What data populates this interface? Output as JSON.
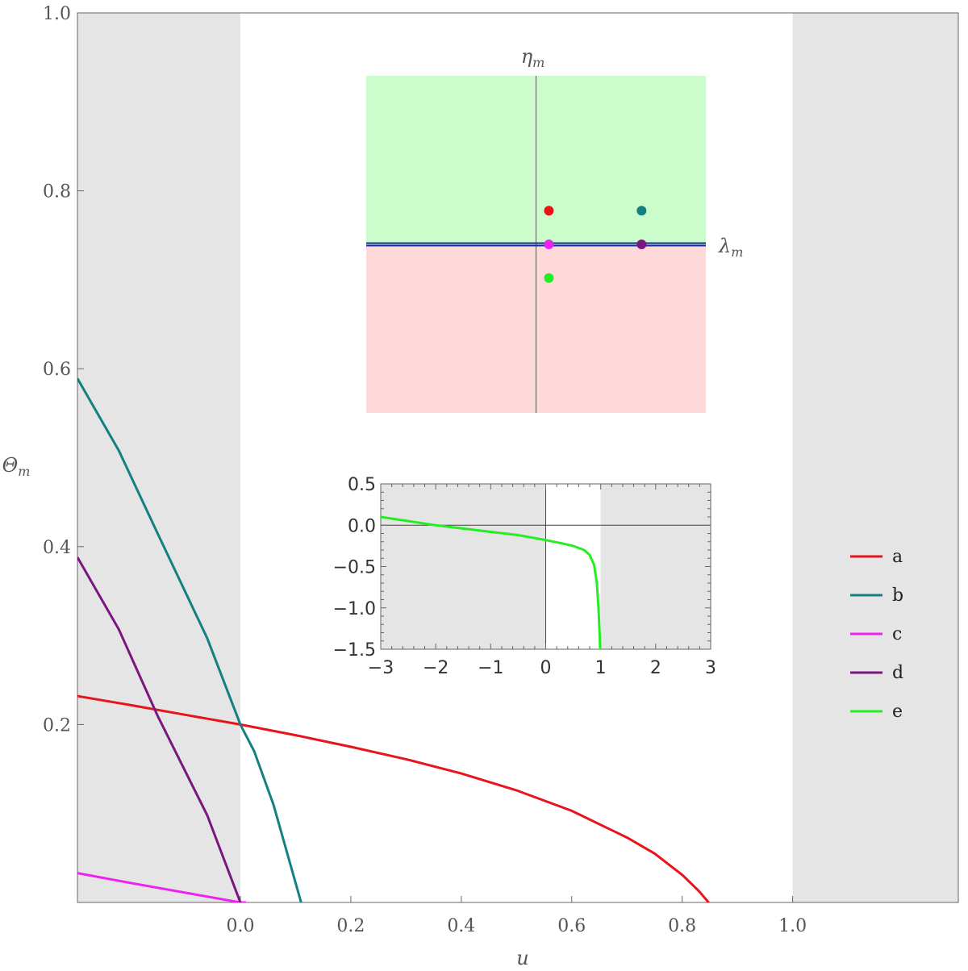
{
  "chart_data": [
    {
      "type": "line",
      "xlabel": "u",
      "ylabel": "Θm",
      "xlim": [
        -0.295,
        1.3
      ],
      "ylim": [
        0,
        1.0
      ],
      "x_ticks": [
        "0.0",
        "0.2",
        "0.4",
        "0.6",
        "0.8",
        "1.0"
      ],
      "y_ticks": [
        "0.2",
        "0.4",
        "0.6",
        "0.8",
        "1.0"
      ],
      "shaded_regions_x": [
        [
          -0.295,
          0.0
        ],
        [
          1.0,
          1.3
        ]
      ],
      "series": [
        {
          "name": "a",
          "color": "#e8141c",
          "points": [
            [
              -0.295,
              0.232
            ],
            [
              -0.2,
              0.222
            ],
            [
              -0.1,
              0.211
            ],
            [
              0.0,
              0.2
            ],
            [
              0.1,
              0.188
            ],
            [
              0.2,
              0.175
            ],
            [
              0.3,
              0.161
            ],
            [
              0.4,
              0.145
            ],
            [
              0.5,
              0.126
            ],
            [
              0.6,
              0.103
            ],
            [
              0.7,
              0.073
            ],
            [
              0.75,
              0.055
            ],
            [
              0.8,
              0.031
            ],
            [
              0.83,
              0.013
            ],
            [
              0.848,
              0.0
            ]
          ]
        },
        {
          "name": "b",
          "color": "#158080",
          "points": [
            [
              -0.295,
              0.589
            ],
            [
              -0.22,
              0.508
            ],
            [
              -0.15,
              0.415
            ],
            [
              -0.06,
              0.297
            ],
            [
              0.0,
              0.2
            ],
            [
              0.025,
              0.17
            ],
            [
              0.06,
              0.11
            ],
            [
              0.11,
              0.0
            ]
          ]
        },
        {
          "name": "c",
          "color": "#ee22ee",
          "points": [
            [
              -0.295,
              0.033
            ],
            [
              -0.2,
              0.022
            ],
            [
              -0.1,
              0.011
            ],
            [
              0.0,
              0.0
            ],
            [
              0.01,
              0.0
            ]
          ]
        },
        {
          "name": "d",
          "color": "#7a1680",
          "points": [
            [
              -0.295,
              0.388
            ],
            [
              -0.22,
              0.307
            ],
            [
              -0.15,
              0.21
            ],
            [
              -0.06,
              0.098
            ],
            [
              0.0,
              0.0
            ]
          ]
        },
        {
          "name": "e",
          "color": "#22ee22",
          "points": []
        }
      ],
      "legend": [
        "a",
        "b",
        "c",
        "d",
        "e"
      ],
      "legend_position": "right"
    },
    {
      "type": "scatter",
      "xlabel": "λm",
      "ylabel": "ηm",
      "regions": [
        {
          "color": "#ccfccc",
          "where": "η > λ-line"
        },
        {
          "color": "#fdd9d9",
          "where": "η < λ-line"
        }
      ],
      "boundary_color": "#1a2a9a",
      "xlim": [
        -1.85,
        1.85
      ],
      "ylim": [
        -1.85,
        1.85
      ],
      "points": [
        {
          "series": "a",
          "x": 0.14,
          "y": 0.37,
          "color": "#ee1111"
        },
        {
          "series": "b",
          "x": 1.15,
          "y": 0.37,
          "color": "#158080"
        },
        {
          "series": "c",
          "x": 0.14,
          "y": 0.0,
          "color": "#ee22ee"
        },
        {
          "series": "d",
          "x": 1.15,
          "y": 0.0,
          "color": "#7a1680"
        },
        {
          "series": "e",
          "x": 0.14,
          "y": -0.37,
          "color": "#22ee22"
        }
      ]
    },
    {
      "type": "line",
      "xlim": [
        -3,
        3
      ],
      "ylim": [
        -1.5,
        0.5
      ],
      "x_ticks": [
        -3,
        -2,
        -1,
        0,
        1,
        2,
        3
      ],
      "y_ticks": [
        0.5,
        0.0,
        -0.5,
        -1.0,
        -1.5
      ],
      "x_tick_labels": [
        "−3",
        "−2",
        "−1",
        "0",
        "1",
        "2",
        "3"
      ],
      "y_tick_labels": [
        "0.5",
        "0.0",
        "−0.5",
        "−1.0",
        "−1.5"
      ],
      "shaded_regions_x": [
        [
          -3,
          0
        ],
        [
          1,
          3
        ]
      ],
      "series": [
        {
          "name": "e",
          "color": "#22ee22",
          "points": [
            [
              -3,
              0.1
            ],
            [
              -2.5,
              0.05
            ],
            [
              -2,
              0.0
            ],
            [
              -1.5,
              -0.04
            ],
            [
              -1,
              -0.08
            ],
            [
              -0.5,
              -0.12
            ],
            [
              0,
              -0.18
            ],
            [
              0.3,
              -0.22
            ],
            [
              0.5,
              -0.25
            ],
            [
              0.7,
              -0.3
            ],
            [
              0.8,
              -0.36
            ],
            [
              0.88,
              -0.48
            ],
            [
              0.93,
              -0.7
            ],
            [
              0.96,
              -1.0
            ],
            [
              0.98,
              -1.3
            ],
            [
              0.99,
              -1.5
            ]
          ]
        }
      ]
    }
  ]
}
